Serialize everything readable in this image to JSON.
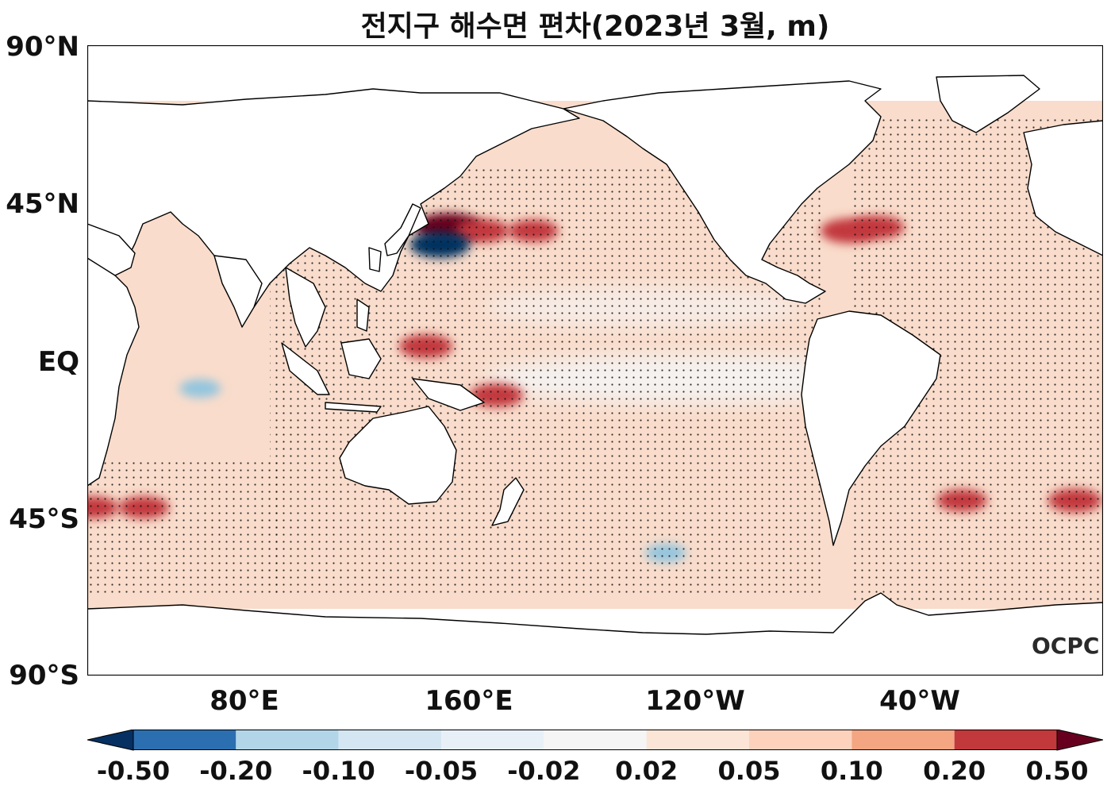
{
  "title": "전지구 해수면 편차(2023년 3월, m)",
  "watermark": "OCPC",
  "lat_labels": [
    "90°N",
    "45°N",
    "EQ",
    "45°S",
    "90°S"
  ],
  "lon_labels": [
    "80°E",
    "160°E",
    "120°W",
    "40°W"
  ],
  "colorbar": {
    "levels": [
      "-0.50",
      "-0.20",
      "-0.10",
      "-0.05",
      "-0.02",
      "0.02",
      "0.05",
      "0.10",
      "0.20",
      "0.50"
    ],
    "colors": [
      "#053061",
      "#2c6fb0",
      "#b2d6e8",
      "#d4e6f1",
      "#e8f0f7",
      "#f5f5f5",
      "#fbe5d6",
      "#fcd2bd",
      "#f4a582",
      "#c2393c",
      "#67001f"
    ]
  },
  "map_data": {
    "region": "global",
    "lon_range": [
      20,
      380
    ],
    "lat_range": [
      -90,
      90
    ],
    "anomaly_blobs": [
      {
        "lon": 148,
        "lat": 38,
        "value": 0.5
      },
      {
        "lon": 160,
        "lat": 37,
        "value": 0.3
      },
      {
        "lon": 178,
        "lat": 37,
        "value": 0.25
      },
      {
        "lon": 290,
        "lat": 37,
        "value": 0.35
      },
      {
        "lon": 300,
        "lat": 38,
        "value": 0.3
      },
      {
        "lon": 140,
        "lat": 4,
        "value": 0.3
      },
      {
        "lon": 165,
        "lat": -10,
        "value": 0.3
      },
      {
        "lon": 22,
        "lat": -42,
        "value": 0.25
      },
      {
        "lon": 40,
        "lat": -42,
        "value": 0.25
      },
      {
        "lon": 330,
        "lat": -40,
        "value": 0.25
      },
      {
        "lon": 370,
        "lat": -40,
        "value": 0.3
      },
      {
        "lon": 145,
        "lat": 33,
        "value": -0.4
      },
      {
        "lon": 60,
        "lat": -8,
        "value": -0.1
      },
      {
        "lon": 225,
        "lat": -55,
        "value": -0.1
      }
    ]
  }
}
